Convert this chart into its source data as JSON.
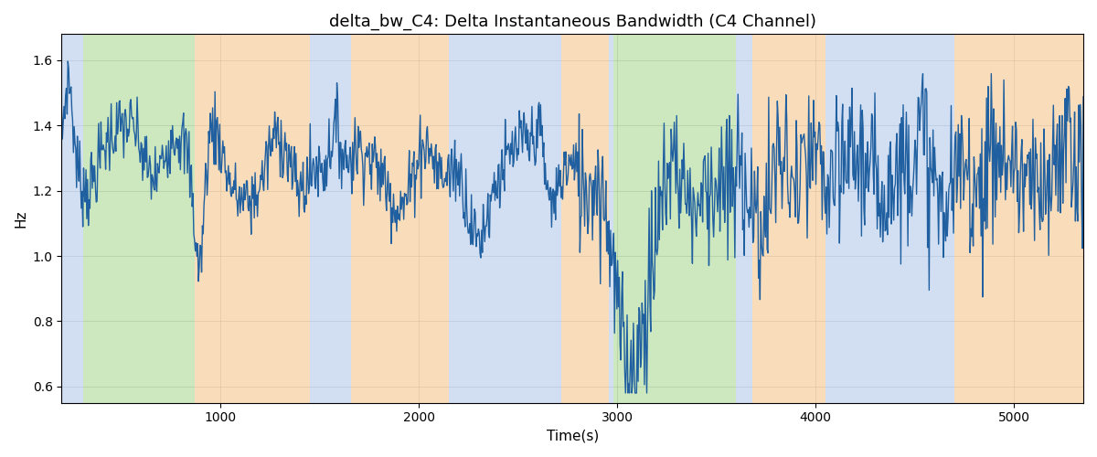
{
  "title": "delta_bw_C4: Delta Instantaneous Bandwidth (C4 Channel)",
  "xlabel": "Time(s)",
  "ylabel": "Hz",
  "xlim": [
    200,
    5350
  ],
  "ylim": [
    0.55,
    1.68
  ],
  "line_color": "#2060a0",
  "line_width": 1.0,
  "figsize": [
    12,
    5
  ],
  "dpi": 100,
  "bands": [
    {
      "xmin": 200,
      "xmax": 310,
      "color": "#aec6e8",
      "alpha": 0.55
    },
    {
      "xmin": 310,
      "xmax": 870,
      "color": "#90cc70",
      "alpha": 0.45
    },
    {
      "xmin": 870,
      "xmax": 1450,
      "color": "#f5c080",
      "alpha": 0.55
    },
    {
      "xmin": 1450,
      "xmax": 1660,
      "color": "#aec6e8",
      "alpha": 0.55
    },
    {
      "xmin": 1660,
      "xmax": 2150,
      "color": "#f5c080",
      "alpha": 0.55
    },
    {
      "xmin": 2150,
      "xmax": 2720,
      "color": "#aec6e8",
      "alpha": 0.55
    },
    {
      "xmin": 2720,
      "xmax": 2960,
      "color": "#f5c080",
      "alpha": 0.55
    },
    {
      "xmin": 2960,
      "xmax": 2980,
      "color": "#aec6e8",
      "alpha": 0.55
    },
    {
      "xmin": 2980,
      "xmax": 3600,
      "color": "#90cc70",
      "alpha": 0.45
    },
    {
      "xmin": 3600,
      "xmax": 3680,
      "color": "#aec6e8",
      "alpha": 0.55
    },
    {
      "xmin": 3680,
      "xmax": 4050,
      "color": "#f5c080",
      "alpha": 0.55
    },
    {
      "xmin": 4050,
      "xmax": 4700,
      "color": "#aec6e8",
      "alpha": 0.55
    },
    {
      "xmin": 4700,
      "xmax": 5350,
      "color": "#f5c080",
      "alpha": 0.55
    }
  ],
  "yticks": [
    0.6,
    0.8,
    1.0,
    1.2,
    1.4,
    1.6
  ]
}
